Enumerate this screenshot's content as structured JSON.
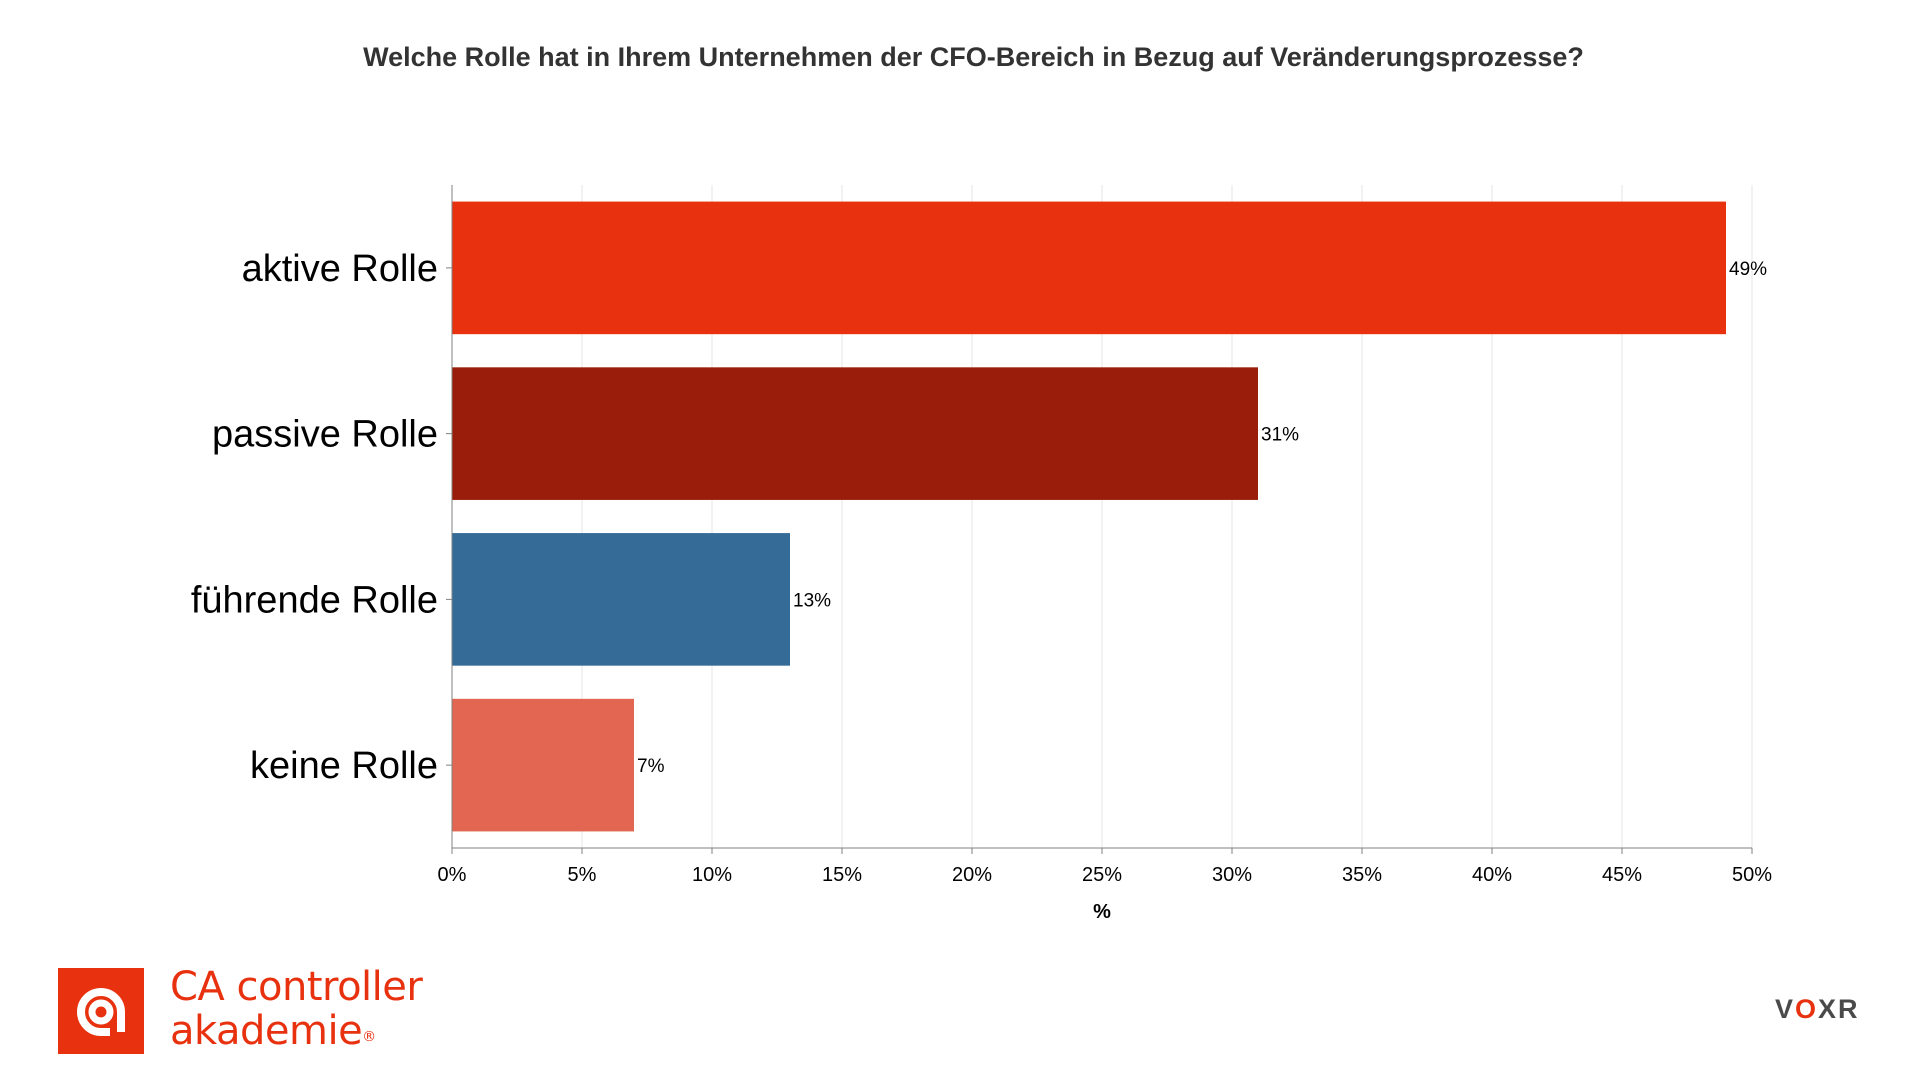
{
  "chart_data": {
    "type": "bar",
    "orientation": "horizontal",
    "title": "Welche Rolle hat in Ihrem Unternehmen der CFO-Bereich in Bezug auf Veränderungsprozesse?",
    "xlabel": "%",
    "ylabel": "",
    "categories": [
      "aktive Rolle",
      "passive Rolle",
      "führende Rolle",
      "keine Rolle"
    ],
    "values": [
      49,
      31,
      13,
      7
    ],
    "value_labels": [
      "49%",
      "31%",
      "13%",
      "7%"
    ],
    "colors": [
      "#e8320f",
      "#991d0a",
      "#356b97",
      "#e26651"
    ],
    "xlim": [
      0,
      50
    ],
    "xticks": [
      "0%",
      "5%",
      "10%",
      "15%",
      "20%",
      "25%",
      "30%",
      "35%",
      "40%",
      "45%",
      "50%"
    ],
    "grid": true,
    "legend": "none"
  },
  "branding": {
    "logo_line1": "CA controller",
    "logo_line2": "akademie",
    "logo_registered": "®",
    "logo_color": "#e8320f",
    "voxr_left": "V",
    "voxr_mark": "O",
    "voxr_right": "XR"
  }
}
